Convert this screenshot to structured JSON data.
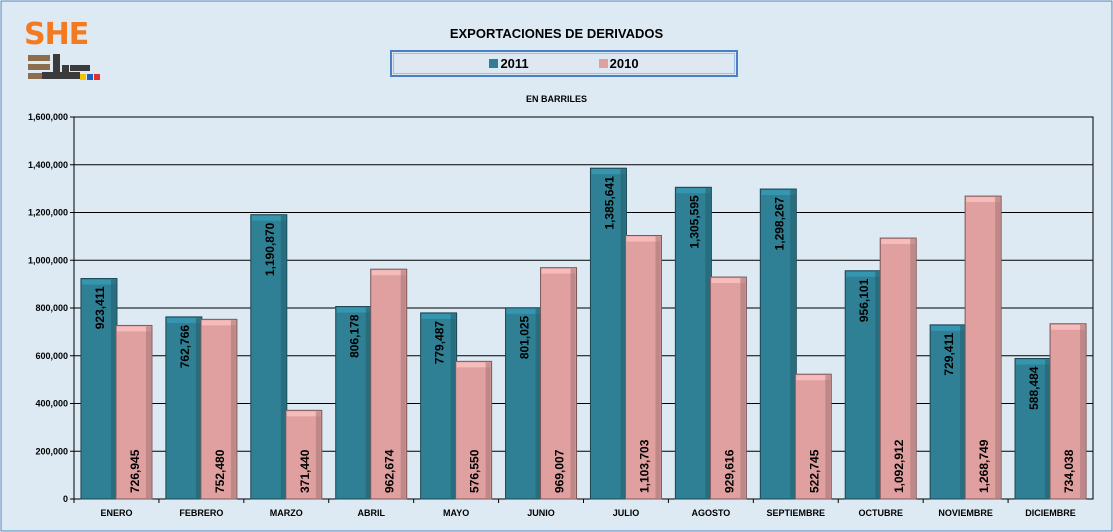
{
  "logo": {
    "text": "SHE",
    "colors": [
      "#f47a20",
      "#8c6e4e",
      "#3b3b3b",
      "#f4c400",
      "#1f5fbf",
      "#e03030"
    ]
  },
  "chart_data": {
    "type": "bar",
    "title": "EXPORTACIONES DE DERIVADOS",
    "subtitle": "EN BARRILES",
    "categories": [
      "ENERO",
      "FEBRERO",
      "MARZO",
      "ABRIL",
      "MAYO",
      "JUNIO",
      "JULIO",
      "AGOSTO",
      "SEPTIEMBRE",
      "OCTUBRE",
      "NOVIEMBRE",
      "DICIEMBRE"
    ],
    "series": [
      {
        "name": "2011",
        "color": "#2f8095",
        "values": [
          923411,
          762766,
          1190870,
          806178,
          779487,
          801025,
          1385641,
          1305595,
          1298267,
          956101,
          729411,
          588484
        ],
        "labels": [
          "923,411",
          "762,766",
          "1,190,870",
          "806,178",
          "779,487",
          "801,025",
          "1,385,641",
          "1,305,595",
          "1,298,267",
          "956,101",
          "729,411",
          "588,484"
        ]
      },
      {
        "name": "2010",
        "color": "#e0a0a0",
        "values": [
          726945,
          752480,
          371440,
          962674,
          576550,
          969007,
          1103703,
          929616,
          522745,
          1092912,
          1268749,
          734038
        ],
        "labels": [
          "726,945",
          "752,480",
          "371,440",
          "962,674",
          "576,550",
          "969,007",
          "1,103,703",
          "929,616",
          "522,745",
          "1,092,912",
          "1,268,749",
          "734,038"
        ]
      }
    ],
    "ylim": [
      0,
      1600000
    ],
    "yticks": [
      0,
      200000,
      400000,
      600000,
      800000,
      1000000,
      1200000,
      1400000,
      1600000
    ],
    "ytick_labels": [
      "0",
      "200,000",
      "400,000",
      "600,000",
      "800,000",
      "1,000,000",
      "1,200,000",
      "1,400,000",
      "1,600,000"
    ],
    "grid": true,
    "legend": "top-center",
    "background": "#ddeaf3"
  }
}
